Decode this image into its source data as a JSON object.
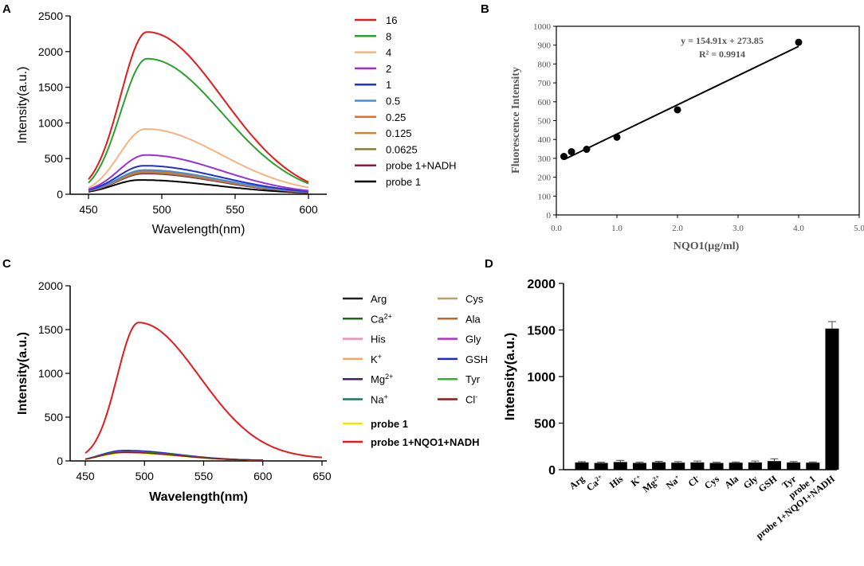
{
  "chart_data": [
    {
      "panel": "A",
      "type": "line",
      "xlabel": "Wavelength(nm)",
      "ylabel": "Intensity(a.u.)",
      "xlim": [
        450,
        600
      ],
      "ylim": [
        0,
        2500
      ],
      "xticks": [
        450,
        500,
        550,
        600
      ],
      "yticks": [
        0,
        500,
        1000,
        1500,
        2000,
        2500
      ],
      "series": [
        {
          "name": "16",
          "color": "#e41a1c",
          "peak": 2275,
          "peak_x": 490,
          "start": 210,
          "end": 170
        },
        {
          "name": "8",
          "color": "#2ca02c",
          "peak": 1900,
          "peak_x": 490,
          "start": 160,
          "end": 150
        },
        {
          "name": "4",
          "color": "#f5b482",
          "peak": 915,
          "peak_x": 489,
          "start": 90,
          "end": 95
        },
        {
          "name": "2",
          "color": "#9b30d9",
          "peak": 550,
          "peak_x": 489,
          "start": 70,
          "end": 50
        },
        {
          "name": "1",
          "color": "#1f2fd0",
          "peak": 400,
          "peak_x": 488,
          "start": 60,
          "end": 40
        },
        {
          "name": "0.5",
          "color": "#3d8fe0",
          "peak": 340,
          "peak_x": 488,
          "start": 55,
          "end": 35
        },
        {
          "name": "0.25",
          "color": "#f06a20",
          "peak": 330,
          "peak_x": 488,
          "start": 55,
          "end": 35
        },
        {
          "name": "0.125",
          "color": "#c2863a",
          "peak": 315,
          "peak_x": 488,
          "start": 50,
          "end": 30
        },
        {
          "name": "0.0625",
          "color": "#8a7a3a",
          "peak": 300,
          "peak_x": 488,
          "start": 50,
          "end": 30
        },
        {
          "name": "probe 1+NADH",
          "color": "#8b1a4a",
          "peak": 290,
          "peak_x": 488,
          "start": 45,
          "end": 25
        },
        {
          "name": "probe 1",
          "color": "#000000",
          "peak": 200,
          "peak_x": 485,
          "start": 35,
          "end": 20
        }
      ]
    },
    {
      "panel": "B",
      "type": "scatter",
      "xlabel": "NQO1(μg/ml)",
      "ylabel": "Fluorescence Intensity",
      "xlim": [
        0,
        5
      ],
      "ylim": [
        0,
        1000
      ],
      "xtick_labels": [
        "0.0",
        "1.0",
        "2.0",
        "3.0",
        "4.0",
        "5.0"
      ],
      "yticks": [
        0,
        100,
        200,
        300,
        400,
        500,
        600,
        700,
        800,
        900,
        1000
      ],
      "x": [
        0.125,
        0.25,
        0.5,
        1.0,
        2.0,
        4.0
      ],
      "y": [
        310,
        335,
        348,
        412,
        557,
        915
      ],
      "fit_slope": 154.91,
      "fit_intercept": 273.85,
      "equation": "y = 154.91x + 273.85",
      "r2": "R² = 0.9914"
    },
    {
      "panel": "C",
      "type": "line",
      "xlabel": "Wavelength(nm)",
      "ylabel": "Intensity(a.u.)",
      "xlim": [
        450,
        650
      ],
      "ylim": [
        0,
        2000
      ],
      "xticks": [
        450,
        500,
        550,
        600,
        650
      ],
      "yticks": [
        0,
        500,
        1000,
        1500,
        2000
      ],
      "series": [
        {
          "name": "Arg",
          "color": "#222222",
          "peak": 95,
          "peak_x": 483,
          "start": 20,
          "end": 5
        },
        {
          "name": "Ca",
          "sup": "2+",
          "color": "#1a6b1a",
          "peak": 100,
          "peak_x": 483,
          "start": 20,
          "end": 5
        },
        {
          "name": "His",
          "color": "#f08fb8",
          "peak": 105,
          "peak_x": 483,
          "start": 20,
          "end": 5
        },
        {
          "name": "K",
          "sup": "+",
          "color": "#f0a860",
          "peak": 110,
          "peak_x": 483,
          "start": 20,
          "end": 5
        },
        {
          "name": "Mg",
          "sup": "2+",
          "color": "#4a1a6b",
          "peak": 100,
          "peak_x": 483,
          "start": 20,
          "end": 5
        },
        {
          "name": "Na",
          "sup": "+",
          "color": "#1a7a5a",
          "peak": 98,
          "peak_x": 483,
          "start": 20,
          "end": 5
        },
        {
          "name": "probe 1",
          "color": "#f5e600",
          "peak": 90,
          "peak_x": 483,
          "start": 20,
          "end": 5
        },
        {
          "name": "probe 1+NQO1+NADH",
          "color": "#e41a1c",
          "peak": 1580,
          "peak_x": 495,
          "start": 90,
          "end": 40
        },
        {
          "name": "Cys",
          "color": "#b8a070",
          "peak": 100,
          "peak_x": 483,
          "start": 20,
          "end": 5
        },
        {
          "name": "Ala",
          "color": "#c8641e",
          "peak": 105,
          "peak_x": 483,
          "start": 20,
          "end": 5
        },
        {
          "name": "Gly",
          "color": "#b030d0",
          "peak": 110,
          "peak_x": 483,
          "start": 20,
          "end": 5
        },
        {
          "name": "GSH",
          "color": "#1a2ad0",
          "peak": 120,
          "peak_x": 483,
          "start": 20,
          "end": 5
        },
        {
          "name": "Tyr",
          "color": "#2ab82a",
          "peak": 105,
          "peak_x": 483,
          "start": 20,
          "end": 5
        },
        {
          "name": "Cl",
          "sup": "-",
          "color": "#8b1a1a",
          "peak": 98,
          "peak_x": 483,
          "start": 20,
          "end": 5
        }
      ]
    },
    {
      "panel": "D",
      "type": "bar",
      "ylabel": "Intensity(a.u.)",
      "ylim": [
        0,
        2000
      ],
      "yticks": [
        0,
        500,
        1000,
        1500,
        2000
      ],
      "categories": [
        {
          "name": "Arg",
          "sup": ""
        },
        {
          "name": "Ca",
          "sup": "2+"
        },
        {
          "name": "His",
          "sup": ""
        },
        {
          "name": "K",
          "sup": "+"
        },
        {
          "name": "Mg",
          "sup": "2+"
        },
        {
          "name": "Na",
          "sup": "+"
        },
        {
          "name": "Cl",
          "sup": "-"
        },
        {
          "name": "Cys",
          "sup": ""
        },
        {
          "name": "Ala",
          "sup": ""
        },
        {
          "name": "Gly",
          "sup": ""
        },
        {
          "name": "GSH",
          "sup": ""
        },
        {
          "name": "Tyr",
          "sup": ""
        },
        {
          "name": "probe 1",
          "sup": ""
        },
        {
          "name": "probe 1+NQO1+NADH",
          "sup": ""
        }
      ],
      "values": [
        78,
        72,
        82,
        72,
        80,
        75,
        78,
        72,
        75,
        78,
        92,
        78,
        75,
        1515
      ],
      "errors": [
        8,
        8,
        18,
        8,
        10,
        12,
        15,
        8,
        8,
        15,
        25,
        10,
        8,
        75
      ]
    }
  ],
  "panel_labels": [
    "A",
    "B",
    "C",
    "D"
  ]
}
